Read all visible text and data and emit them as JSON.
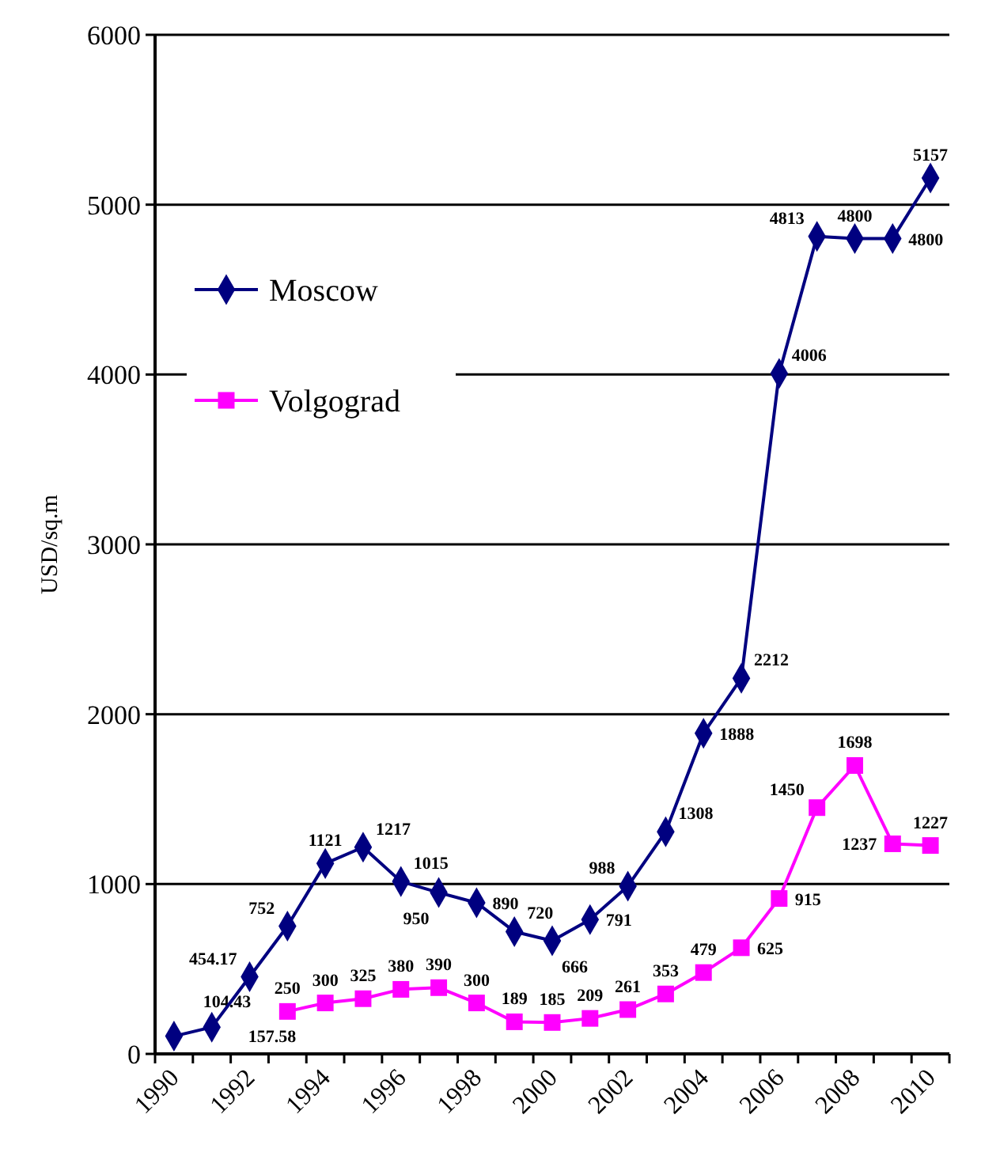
{
  "chart_data": {
    "type": "line",
    "ylabel": "USD/sq.m",
    "categories": [
      "1990",
      null,
      "1992",
      null,
      "1994",
      null,
      "1996",
      null,
      "1998",
      null,
      "2000",
      null,
      "2002",
      null,
      "2004",
      null,
      "2006",
      null,
      "2008",
      null,
      "2010"
    ],
    "series": [
      {
        "name": "Moscow",
        "color": "#000080",
        "marker": "diamond",
        "values": [
          104.43,
          157.58,
          454.17,
          752,
          1121,
          1217,
          1015,
          950,
          890,
          720,
          666,
          791,
          988,
          1308,
          1888,
          2212,
          4006,
          4813,
          4800,
          4800,
          5157
        ]
      },
      {
        "name": "Volgograd",
        "color": "#ff00ff",
        "marker": "square",
        "values": [
          null,
          null,
          null,
          250,
          300,
          325,
          380,
          390,
          300,
          189,
          185,
          209,
          261,
          353,
          479,
          625,
          915,
          1450,
          1698,
          1237,
          1227
        ]
      }
    ],
    "ylim": [
      0,
      6000
    ],
    "yticks": [
      0,
      1000,
      2000,
      3000,
      4000,
      5000,
      6000
    ],
    "grid": "y",
    "legend": "top left",
    "data_labels": true
  }
}
